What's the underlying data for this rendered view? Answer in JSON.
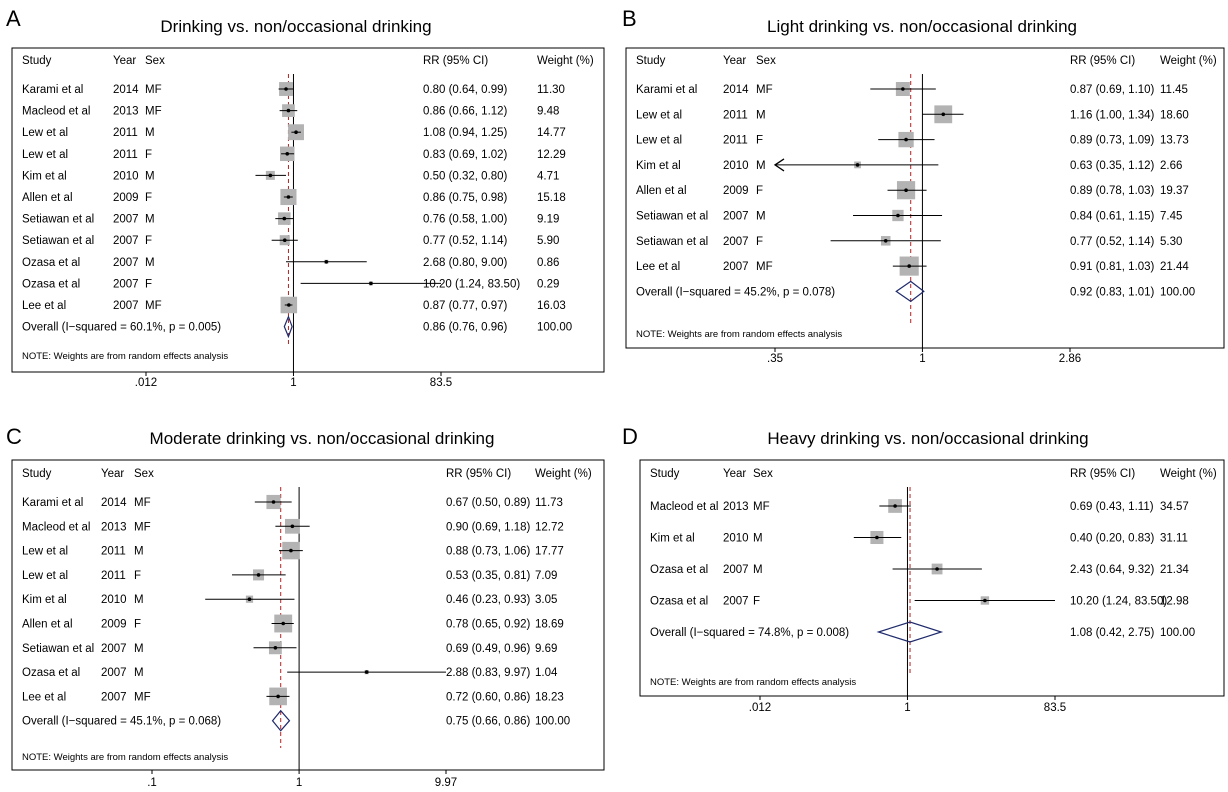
{
  "chart_data": [
    {
      "type": "forest",
      "panel_letter": "A",
      "title": "Drinking vs. non/occasional drinking",
      "columns": {
        "study": "Study",
        "year": "Year",
        "sex": "Sex",
        "rr": "RR (95% CI)",
        "weight": "Weight (%)"
      },
      "scale": "log",
      "xlim": [
        0.012,
        83.5
      ],
      "xticks": [
        ".012",
        "1",
        "83.5"
      ],
      "pooled_rr": 0.86,
      "rows": [
        {
          "study": "Karami et al",
          "year": "2014",
          "sex": "MF",
          "rr": 0.8,
          "lo": 0.64,
          "hi": 0.99,
          "weight": 11.3,
          "rr_text": "0.80 (0.64, 0.99)",
          "weight_text": "11.30"
        },
        {
          "study": "Macleod et al",
          "year": "2013",
          "sex": "MF",
          "rr": 0.86,
          "lo": 0.66,
          "hi": 1.12,
          "weight": 9.48,
          "rr_text": "0.86 (0.66, 1.12)",
          "weight_text": "9.48"
        },
        {
          "study": "Lew et al",
          "year": "2011",
          "sex": "M",
          "rr": 1.08,
          "lo": 0.94,
          "hi": 1.25,
          "weight": 14.77,
          "rr_text": "1.08 (0.94, 1.25)",
          "weight_text": "14.77"
        },
        {
          "study": "Lew et al",
          "year": "2011",
          "sex": "F",
          "rr": 0.83,
          "lo": 0.69,
          "hi": 1.02,
          "weight": 12.29,
          "rr_text": "0.83 (0.69, 1.02)",
          "weight_text": "12.29"
        },
        {
          "study": "Kim et al",
          "year": "2010",
          "sex": "M",
          "rr": 0.5,
          "lo": 0.32,
          "hi": 0.8,
          "weight": 4.71,
          "rr_text": "0.50 (0.32, 0.80)",
          "weight_text": "4.71"
        },
        {
          "study": "Allen et al",
          "year": "2009",
          "sex": "F",
          "rr": 0.86,
          "lo": 0.75,
          "hi": 0.98,
          "weight": 15.18,
          "rr_text": "0.86 (0.75, 0.98)",
          "weight_text": "15.18"
        },
        {
          "study": "Setiawan et al",
          "year": "2007",
          "sex": "M",
          "rr": 0.76,
          "lo": 0.58,
          "hi": 1.0,
          "weight": 9.19,
          "rr_text": "0.76 (0.58, 1.00)",
          "weight_text": "9.19"
        },
        {
          "study": "Setiawan et al",
          "year": "2007",
          "sex": "F",
          "rr": 0.77,
          "lo": 0.52,
          "hi": 1.14,
          "weight": 5.9,
          "rr_text": "0.77 (0.52, 1.14)",
          "weight_text": "5.90"
        },
        {
          "study": "Ozasa et al",
          "year": "2007",
          "sex": "M",
          "rr": 2.68,
          "lo": 0.8,
          "hi": 9.0,
          "weight": 0.86,
          "rr_text": "2.68 (0.80, 9.00)",
          "weight_text": "0.86"
        },
        {
          "study": "Ozasa et al",
          "year": "2007",
          "sex": "F",
          "rr": 10.2,
          "lo": 1.24,
          "hi": 83.5,
          "weight": 0.29,
          "rr_text": "10.20 (1.24, 83.50)",
          "weight_text": "0.29"
        },
        {
          "study": "Lee et al",
          "year": "2007",
          "sex": "MF",
          "rr": 0.87,
          "lo": 0.77,
          "hi": 0.97,
          "weight": 16.03,
          "rr_text": "0.87 (0.77, 0.97)",
          "weight_text": "16.03"
        }
      ],
      "overall": {
        "label": "Overall  (I−squared = 60.1%, p = 0.005)",
        "rr": 0.86,
        "lo": 0.76,
        "hi": 0.96,
        "rr_text": "0.86 (0.76, 0.96)",
        "weight_text": "100.00"
      },
      "note": "NOTE: Weights are from random effects analysis"
    },
    {
      "type": "forest",
      "panel_letter": "B",
      "title": "Light drinking vs. non/occasional drinking",
      "columns": {
        "study": "Study",
        "year": "Year",
        "sex": "Sex",
        "rr": "RR (95% CI)",
        "weight": "Weight (%)"
      },
      "scale": "log",
      "xlim": [
        0.35,
        2.86
      ],
      "xticks": [
        ".35",
        "1",
        "2.86"
      ],
      "pooled_rr": 0.92,
      "rows": [
        {
          "study": "Karami et al",
          "year": "2014",
          "sex": "MF",
          "rr": 0.87,
          "lo": 0.69,
          "hi": 1.1,
          "weight": 11.45,
          "rr_text": "0.87 (0.69, 1.10)",
          "weight_text": "11.45"
        },
        {
          "study": "Lew et al",
          "year": "2011",
          "sex": "M",
          "rr": 1.16,
          "lo": 1.0,
          "hi": 1.34,
          "weight": 18.6,
          "rr_text": "1.16 (1.00, 1.34)",
          "weight_text": "18.60"
        },
        {
          "study": "Lew et al",
          "year": "2011",
          "sex": "F",
          "rr": 0.89,
          "lo": 0.73,
          "hi": 1.09,
          "weight": 13.73,
          "rr_text": "0.89 (0.73, 1.09)",
          "weight_text": "13.73"
        },
        {
          "study": "Kim et al",
          "year": "2010",
          "sex": "M",
          "rr": 0.63,
          "lo": 0.35,
          "hi": 1.12,
          "weight": 2.66,
          "rr_text": "0.63 (0.35, 1.12)",
          "weight_text": "2.66",
          "arrow_low": true
        },
        {
          "study": "Allen et al",
          "year": "2009",
          "sex": "F",
          "rr": 0.89,
          "lo": 0.78,
          "hi": 1.03,
          "weight": 19.37,
          "rr_text": "0.89 (0.78, 1.03)",
          "weight_text": "19.37"
        },
        {
          "study": "Setiawan et al",
          "year": "2007",
          "sex": "M",
          "rr": 0.84,
          "lo": 0.61,
          "hi": 1.15,
          "weight": 7.45,
          "rr_text": "0.84 (0.61, 1.15)",
          "weight_text": "7.45"
        },
        {
          "study": "Setiawan et al",
          "year": "2007",
          "sex": "F",
          "rr": 0.77,
          "lo": 0.52,
          "hi": 1.14,
          "weight": 5.3,
          "rr_text": "0.77 (0.52, 1.14)",
          "weight_text": "5.30"
        },
        {
          "study": "Lee et al",
          "year": "2007",
          "sex": "MF",
          "rr": 0.91,
          "lo": 0.81,
          "hi": 1.03,
          "weight": 21.44,
          "rr_text": "0.91 (0.81, 1.03)",
          "weight_text": "21.44"
        }
      ],
      "overall": {
        "label": "Overall  (I−squared = 45.2%, p = 0.078)",
        "rr": 0.92,
        "lo": 0.83,
        "hi": 1.01,
        "rr_text": "0.92 (0.83, 1.01)",
        "weight_text": "100.00"
      },
      "note": "NOTE: Weights are from random effects analysis"
    },
    {
      "type": "forest",
      "panel_letter": "C",
      "title": "Moderate drinking vs. non/occasional drinking",
      "columns": {
        "study": "Study",
        "year": "Year",
        "sex": "Sex",
        "rr": "RR (95% CI)",
        "weight": "Weight (%)"
      },
      "scale": "log",
      "xlim": [
        0.1,
        9.97
      ],
      "xticks": [
        ".1",
        "1",
        "9.97"
      ],
      "pooled_rr": 0.75,
      "rows": [
        {
          "study": "Karami et al",
          "year": "2014",
          "sex": "MF",
          "rr": 0.67,
          "lo": 0.5,
          "hi": 0.89,
          "weight": 11.73,
          "rr_text": "0.67 (0.50, 0.89)",
          "weight_text": "11.73"
        },
        {
          "study": "Macleod et al",
          "year": "2013",
          "sex": "MF",
          "rr": 0.9,
          "lo": 0.69,
          "hi": 1.18,
          "weight": 12.72,
          "rr_text": "0.90 (0.69, 1.18)",
          "weight_text": "12.72"
        },
        {
          "study": "Lew et al",
          "year": "2011",
          "sex": "M",
          "rr": 0.88,
          "lo": 0.73,
          "hi": 1.06,
          "weight": 17.77,
          "rr_text": "0.88 (0.73, 1.06)",
          "weight_text": "17.77"
        },
        {
          "study": "Lew et al",
          "year": "2011",
          "sex": "F",
          "rr": 0.53,
          "lo": 0.35,
          "hi": 0.81,
          "weight": 7.09,
          "rr_text": "0.53 (0.35, 0.81)",
          "weight_text": "7.09"
        },
        {
          "study": "Kim et al",
          "year": "2010",
          "sex": "M",
          "rr": 0.46,
          "lo": 0.23,
          "hi": 0.93,
          "weight": 3.05,
          "rr_text": "0.46 (0.23, 0.93)",
          "weight_text": "3.05"
        },
        {
          "study": "Allen et al",
          "year": "2009",
          "sex": "F",
          "rr": 0.78,
          "lo": 0.65,
          "hi": 0.92,
          "weight": 18.69,
          "rr_text": "0.78 (0.65, 0.92)",
          "weight_text": "18.69"
        },
        {
          "study": "Setiawan et al",
          "year": "2007",
          "sex": "M",
          "rr": 0.69,
          "lo": 0.49,
          "hi": 0.96,
          "weight": 9.69,
          "rr_text": "0.69 (0.49, 0.96)",
          "weight_text": "9.69"
        },
        {
          "study": "Ozasa et al",
          "year": "2007",
          "sex": "M",
          "rr": 2.88,
          "lo": 0.83,
          "hi": 9.97,
          "weight": 1.04,
          "rr_text": "2.88 (0.83, 9.97)",
          "weight_text": "1.04"
        },
        {
          "study": "Lee et al",
          "year": "2007",
          "sex": "MF",
          "rr": 0.72,
          "lo": 0.6,
          "hi": 0.86,
          "weight": 18.23,
          "rr_text": "0.72 (0.60, 0.86)",
          "weight_text": "18.23"
        }
      ],
      "overall": {
        "label": "Overall  (I−squared = 45.1%, p = 0.068)",
        "rr": 0.75,
        "lo": 0.66,
        "hi": 0.86,
        "rr_text": "0.75 (0.66, 0.86)",
        "weight_text": "100.00"
      },
      "note": "NOTE: Weights are from random effects analysis"
    },
    {
      "type": "forest",
      "panel_letter": "D",
      "title": "Heavy drinking vs. non/occasional drinking",
      "columns": {
        "study": "Study",
        "year": "Year",
        "sex": "Sex",
        "rr": "RR (95% CI)",
        "weight": "Weight (%)"
      },
      "scale": "log",
      "xlim": [
        0.012,
        83.5
      ],
      "xticks": [
        ".012",
        "1",
        "83.5"
      ],
      "pooled_rr": 1.08,
      "rows": [
        {
          "study": "Macleod et al",
          "year": "2013",
          "sex": "MF",
          "rr": 0.69,
          "lo": 0.43,
          "hi": 1.11,
          "weight": 34.57,
          "rr_text": "0.69 (0.43, 1.11)",
          "weight_text": "34.57"
        },
        {
          "study": "Kim et al",
          "year": "2010",
          "sex": "M",
          "rr": 0.4,
          "lo": 0.2,
          "hi": 0.83,
          "weight": 31.11,
          "rr_text": "0.40 (0.20, 0.83)",
          "weight_text": "31.11"
        },
        {
          "study": "Ozasa et al",
          "year": "2007",
          "sex": "M",
          "rr": 2.43,
          "lo": 0.64,
          "hi": 9.32,
          "weight": 21.34,
          "rr_text": "2.43 (0.64, 9.32)",
          "weight_text": "21.34"
        },
        {
          "study": "Ozasa et al",
          "year": "2007",
          "sex": "F",
          "rr": 10.2,
          "lo": 1.24,
          "hi": 83.5,
          "weight": 12.98,
          "rr_text": "10.20 (1.24, 83.50)",
          "weight_text": "12.98"
        }
      ],
      "overall": {
        "label": "Overall  (I−squared = 74.8%, p = 0.008)",
        "rr": 1.08,
        "lo": 0.42,
        "hi": 2.75,
        "rr_text": "1.08 (0.42, 2.75)",
        "weight_text": "100.00"
      },
      "note": "NOTE: Weights are from random effects analysis"
    }
  ]
}
